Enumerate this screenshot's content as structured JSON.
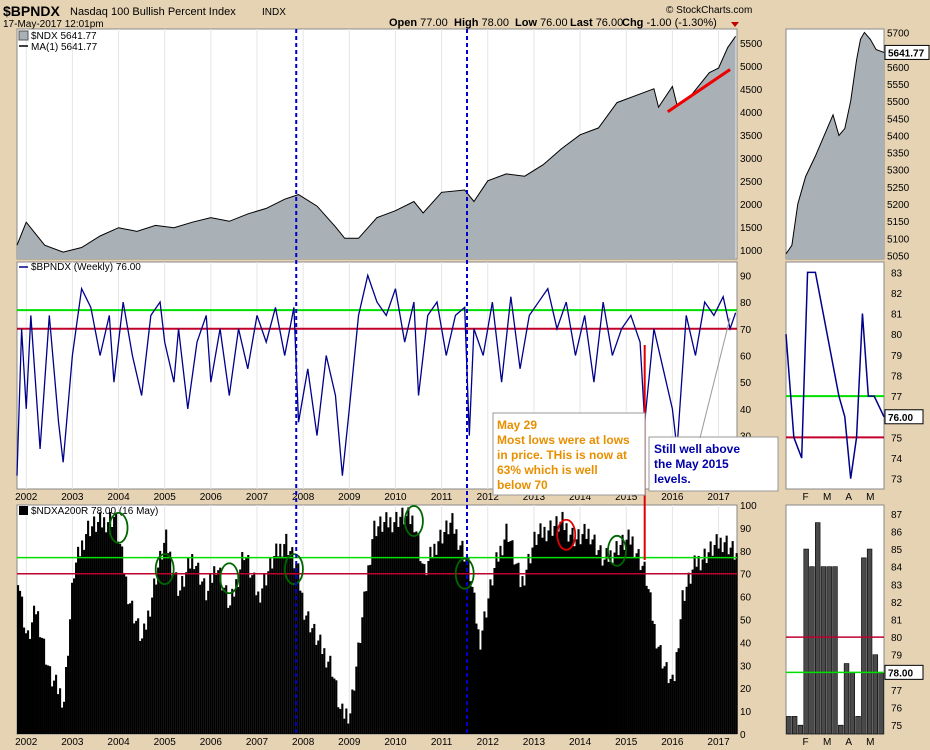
{
  "header": {
    "symbol": "$BPNDX",
    "description": "Nasdaq 100 Bullish Percent Index",
    "exchange": "INDX",
    "datetime": "17-May-2017 12:01pm",
    "watermark": "© StockCharts.com",
    "quote": {
      "open_label": "Open",
      "open": "77.00",
      "high_label": "High",
      "high": "78.00",
      "low_label": "Low",
      "low": "76.00",
      "last_label": "Last",
      "last": "76.00",
      "chg_label": "Chg",
      "chg": "-1.00 (-1.30%)"
    }
  },
  "colors": {
    "price_fill": "#a9b0b6",
    "bpi_line": "#00008b",
    "green_line": "#00e000",
    "red_line": "#c0002a",
    "vertical_marker": "#0000cc",
    "annotation_orange": "#e88f00",
    "annotation_blue": "#0000aa"
  },
  "chart_data": [
    {
      "panel": "price",
      "type": "area",
      "legend": [
        "$NDX 5641.77",
        "MA(1) 5641.77"
      ],
      "last_value_label": "5641.77",
      "x_start": 2001.8,
      "x_end": 2017.4,
      "x": [
        2001.8,
        2002.0,
        2002.4,
        2002.8,
        2003.2,
        2003.6,
        2004.0,
        2004.4,
        2004.8,
        2005.2,
        2005.6,
        2006.0,
        2006.4,
        2006.8,
        2007.2,
        2007.6,
        2007.9,
        2008.3,
        2008.7,
        2008.9,
        2009.2,
        2009.6,
        2010.0,
        2010.4,
        2010.6,
        2011.0,
        2011.5,
        2011.7,
        2012.0,
        2012.4,
        2012.8,
        2013.2,
        2013.6,
        2014.0,
        2014.4,
        2014.8,
        2015.2,
        2015.6,
        2015.7,
        2016.0,
        2016.1,
        2016.4,
        2016.8,
        2017.0,
        2017.2,
        2017.37
      ],
      "y": [
        1100,
        1600,
        1100,
        950,
        1050,
        1300,
        1480,
        1400,
        1530,
        1480,
        1600,
        1700,
        1620,
        1780,
        1900,
        2100,
        2200,
        1950,
        1500,
        1250,
        1250,
        1700,
        1850,
        2050,
        1800,
        2250,
        2300,
        2050,
        2500,
        2650,
        2600,
        2850,
        3200,
        3500,
        3650,
        4200,
        4350,
        4500,
        4100,
        4550,
        4150,
        4350,
        4850,
        4950,
        5400,
        5641.77
      ],
      "y_ticks": [
        1000,
        1500,
        2000,
        2500,
        3000,
        3500,
        4000,
        4500,
        5000,
        5500
      ],
      "ylim": [
        800,
        5800
      ],
      "trendline": {
        "x": [
          2015.9,
          2017.25
        ],
        "y": [
          4000,
          4920
        ]
      }
    },
    {
      "panel": "price-zoom",
      "type": "area",
      "x": [
        0,
        0.06,
        0.12,
        0.2,
        0.3,
        0.36,
        0.42,
        0.48,
        0.54,
        0.6,
        0.66,
        0.72,
        0.76,
        0.8,
        0.86,
        0.92,
        1.0
      ],
      "y": [
        5055,
        5080,
        5200,
        5280,
        5340,
        5380,
        5420,
        5460,
        5400,
        5420,
        5500,
        5620,
        5680,
        5700,
        5680,
        5650,
        5641.77
      ],
      "y_ticks": [
        5050,
        5100,
        5150,
        5200,
        5250,
        5300,
        5350,
        5400,
        5450,
        5500,
        5550,
        5600,
        5650,
        5700
      ],
      "ylim": [
        5040,
        5710
      ],
      "last_value_label": "5641.77"
    },
    {
      "panel": "bpi",
      "type": "line",
      "legend": [
        "$BPNDX (Weekly) 76.00"
      ],
      "x": [
        2001.8,
        2001.9,
        2002.0,
        2002.1,
        2002.3,
        2002.5,
        2002.7,
        2002.8,
        2003.0,
        2003.2,
        2003.4,
        2003.6,
        2003.8,
        2003.9,
        2004.1,
        2004.3,
        2004.5,
        2004.7,
        2004.9,
        2005.0,
        2005.2,
        2005.3,
        2005.5,
        2005.7,
        2005.9,
        2006.0,
        2006.2,
        2006.4,
        2006.6,
        2006.8,
        2007.0,
        2007.2,
        2007.4,
        2007.6,
        2007.8,
        2007.9,
        2008.1,
        2008.3,
        2008.5,
        2008.7,
        2008.85,
        2009.0,
        2009.2,
        2009.4,
        2009.6,
        2009.8,
        2010.0,
        2010.2,
        2010.4,
        2010.5,
        2010.7,
        2010.9,
        2011.1,
        2011.3,
        2011.5,
        2011.6,
        2011.7,
        2011.9,
        2012.1,
        2012.3,
        2012.5,
        2012.7,
        2012.9,
        2013.1,
        2013.3,
        2013.5,
        2013.7,
        2013.9,
        2014.1,
        2014.3,
        2014.5,
        2014.7,
        2014.9,
        2015.1,
        2015.3,
        2015.4,
        2015.6,
        2015.8,
        2016.0,
        2016.1,
        2016.3,
        2016.5,
        2016.7,
        2016.9,
        2017.1,
        2017.25,
        2017.37
      ],
      "y": [
        15,
        70,
        40,
        75,
        25,
        75,
        35,
        20,
        60,
        85,
        78,
        60,
        75,
        50,
        80,
        60,
        45,
        75,
        80,
        65,
        50,
        70,
        40,
        65,
        75,
        50,
        70,
        45,
        70,
        55,
        75,
        65,
        78,
        60,
        78,
        35,
        55,
        30,
        60,
        45,
        15,
        40,
        75,
        90,
        80,
        75,
        85,
        65,
        80,
        45,
        75,
        80,
        60,
        75,
        78,
        30,
        70,
        60,
        80,
        50,
        82,
        55,
        75,
        80,
        85,
        70,
        80,
        60,
        75,
        50,
        80,
        60,
        70,
        75,
        65,
        35,
        70,
        55,
        40,
        25,
        75,
        60,
        80,
        75,
        82,
        70,
        76
      ],
      "y_ticks": [
        20,
        30,
        40,
        50,
        60,
        70,
        80,
        90
      ],
      "ylim": [
        10,
        95
      ],
      "green_line": 77,
      "red_line": 70,
      "last_value_label": "76.00"
    },
    {
      "panel": "bpi-zoom",
      "type": "line",
      "x": [
        0,
        0.08,
        0.16,
        0.22,
        0.3,
        0.38,
        0.46,
        0.54,
        0.6,
        0.66,
        0.72,
        0.78,
        0.84,
        0.9,
        1.0
      ],
      "y": [
        80,
        75,
        74,
        83,
        83,
        81,
        79,
        77,
        76,
        73,
        75,
        81,
        77,
        77,
        76
      ],
      "y_ticks": [
        73,
        74,
        75,
        76,
        77,
        78,
        79,
        80,
        81,
        82,
        83
      ],
      "ylim": [
        72.5,
        83.5
      ],
      "green_line": 77,
      "red_line": 75,
      "months": [
        "F",
        "M",
        "A",
        "M"
      ],
      "last_value_label": "76.00"
    },
    {
      "panel": "above-200",
      "type": "bar",
      "legend": [
        "$NDXA200R 78.00 (16 May)"
      ],
      "x": [
        2001.8,
        2002.0,
        2002.2,
        2002.5,
        2002.8,
        2003.0,
        2003.3,
        2003.6,
        2003.9,
        2004.2,
        2004.5,
        2004.8,
        2005.0,
        2005.3,
        2005.6,
        2005.9,
        2006.1,
        2006.4,
        2006.7,
        2007.0,
        2007.3,
        2007.6,
        2007.85,
        2008.0,
        2008.3,
        2008.6,
        2008.8,
        2009.0,
        2009.2,
        2009.5,
        2009.8,
        2010.1,
        2010.4,
        2010.6,
        2010.9,
        2011.2,
        2011.5,
        2011.6,
        2011.8,
        2012.1,
        2012.4,
        2012.7,
        2013.0,
        2013.3,
        2013.6,
        2013.9,
        2014.2,
        2014.5,
        2014.8,
        2015.1,
        2015.4,
        2015.6,
        2015.8,
        2016.0,
        2016.2,
        2016.5,
        2016.8,
        2017.1,
        2017.37
      ],
      "y": [
        70,
        40,
        55,
        25,
        15,
        70,
        90,
        92,
        95,
        60,
        40,
        70,
        85,
        62,
        78,
        60,
        75,
        55,
        80,
        60,
        75,
        85,
        72,
        55,
        40,
        30,
        8,
        10,
        40,
        90,
        92,
        95,
        93,
        70,
        85,
        92,
        78,
        70,
        40,
        70,
        90,
        65,
        85,
        90,
        92,
        85,
        88,
        75,
        82,
        85,
        70,
        45,
        30,
        20,
        60,
        75,
        80,
        85,
        78
      ],
      "y_ticks": [
        0,
        10,
        20,
        30,
        40,
        50,
        60,
        70,
        80,
        90,
        100
      ],
      "ylim": [
        0,
        100
      ],
      "green_line": 77,
      "red_line": 70,
      "highlight_circles_x": [
        2004.0,
        2005.0,
        2006.4,
        2007.8,
        2010.4,
        2011.5,
        2013.7,
        2014.8
      ]
    },
    {
      "panel": "above-200-zoom",
      "type": "bar",
      "values": [
        75.5,
        75.5,
        75.0,
        85.0,
        84.0,
        86.5,
        84.0,
        84.0,
        84.0,
        75.0,
        78.5,
        78.0,
        75.5,
        84.5,
        85.0,
        79.0,
        78.0
      ],
      "y_ticks": [
        75,
        76,
        77,
        78,
        79,
        80,
        81,
        82,
        83,
        84,
        85,
        86,
        87
      ],
      "ylim": [
        74.5,
        87.5
      ],
      "green_line": 78,
      "red_line": 80,
      "months": [
        "F",
        "M",
        "A",
        "M"
      ],
      "last_value_label": "78.00"
    }
  ],
  "x_axis_years": [
    "2002",
    "2003",
    "2004",
    "2005",
    "2006",
    "2007",
    "2008",
    "2009",
    "2010",
    "2011",
    "2012",
    "2013",
    "2014",
    "2015",
    "2016",
    "2017"
  ],
  "vertical_markers_x": [
    2007.85,
    2011.55
  ],
  "red_vertical_x": 2015.4,
  "annotations": {
    "orange_box": {
      "lines": [
        "May 29",
        "Most lows were at lows",
        "in price. THis is now at",
        "63% which is well",
        "below 70"
      ]
    },
    "blue_box": {
      "lines": [
        "Still well above",
        "the May 2015",
        "levels."
      ]
    }
  }
}
